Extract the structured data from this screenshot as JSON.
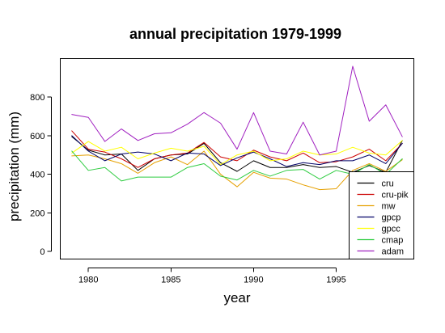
{
  "chart_data": {
    "type": "line",
    "title": "annual precipitation 1979-1999",
    "xlabel": "year",
    "ylabel": "precipitation (mm)",
    "x": [
      1979,
      1980,
      1981,
      1982,
      1983,
      1984,
      1985,
      1986,
      1987,
      1988,
      1989,
      1990,
      1991,
      1992,
      1993,
      1994,
      1995,
      1996,
      1997,
      1998,
      1999
    ],
    "xlim": [
      1978.3,
      1999.7
    ],
    "ylim": [
      -40,
      1000
    ],
    "xticks": [
      1980,
      1985,
      1990,
      1995
    ],
    "yticks": [
      0,
      200,
      400,
      600,
      800
    ],
    "grid": false,
    "legend_position": "bottom-right",
    "series": [
      {
        "name": "cru",
        "color": "#000000",
        "values": [
          595,
          525,
          500,
          505,
          420,
          480,
          500,
          505,
          560,
          460,
          415,
          470,
          435,
          435,
          450,
          435,
          440,
          410,
          445,
          410,
          575
        ]
      },
      {
        "name": "cru-pik",
        "color": "#cc0000",
        "values": [
          625,
          530,
          515,
          480,
          435,
          480,
          500,
          510,
          565,
          490,
          470,
          525,
          490,
          470,
          510,
          460,
          465,
          490,
          530,
          470,
          560
        ]
      },
      {
        "name": "mw",
        "color": "#e6a000",
        "values": [
          495,
          500,
          480,
          455,
          405,
          460,
          490,
          450,
          520,
          400,
          335,
          410,
          380,
          375,
          345,
          320,
          325,
          420,
          455,
          415,
          475
        ]
      },
      {
        "name": "gpcp",
        "color": "#000066",
        "values": [
          600,
          520,
          470,
          505,
          515,
          505,
          470,
          510,
          505,
          445,
          485,
          515,
          480,
          440,
          460,
          450,
          470,
          470,
          500,
          455,
          560
        ]
      },
      {
        "name": "gpcc",
        "color": "#ffff00",
        "values": [
          510,
          570,
          520,
          540,
          480,
          510,
          535,
          520,
          545,
          450,
          500,
          520,
          470,
          480,
          520,
          500,
          505,
          540,
          510,
          500,
          575
        ]
      },
      {
        "name": "cmap",
        "color": "#2ecc40",
        "values": [
          520,
          420,
          435,
          365,
          385,
          385,
          385,
          435,
          455,
          390,
          370,
          420,
          390,
          420,
          425,
          375,
          420,
          400,
          450,
          400,
          480
        ]
      },
      {
        "name": "adam",
        "color": "#a020c0",
        "values": [
          710,
          695,
          570,
          635,
          575,
          610,
          615,
          660,
          720,
          665,
          530,
          720,
          520,
          505,
          670,
          500,
          520,
          960,
          675,
          760,
          595
        ]
      }
    ]
  }
}
